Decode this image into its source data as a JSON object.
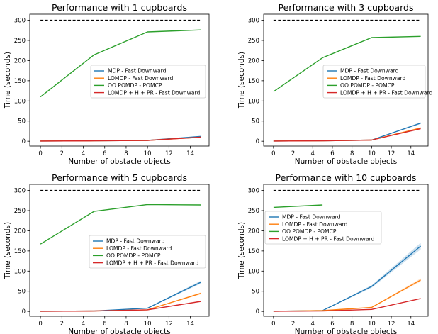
{
  "series_styles": [
    {
      "name": "MDP - Fast Downward",
      "color": "#1f77b4"
    },
    {
      "name": "LOMDP - Fast Downward",
      "color": "#ff7f0e"
    },
    {
      "name": "OO POMDP - POMCP",
      "color": "#2ca02c"
    },
    {
      "name": "LOMDP + H + PR - Fast Downward",
      "color": "#d62728"
    }
  ],
  "timeout_line": {
    "value": 300,
    "color": "#000000",
    "style": "dashed"
  },
  "chart_data": [
    {
      "type": "line",
      "title": "Performance with 1 cupboards",
      "xlabel": "Number of obstacle objects",
      "ylabel": "Time (seconds)",
      "xlim": [
        -1,
        15.75
      ],
      "ylim": [
        -12,
        315
      ],
      "xticks": [
        0,
        2,
        4,
        6,
        8,
        10,
        12,
        14
      ],
      "yticks": [
        0,
        50,
        100,
        150,
        200,
        250,
        300
      ],
      "grid": false,
      "legend": "center-right",
      "x": [
        0,
        5,
        10,
        15
      ],
      "series": [
        {
          "name": "MDP - Fast Downward",
          "values": [
            0.5,
            1,
            2,
            12
          ]
        },
        {
          "name": "LOMDP - Fast Downward",
          "values": [
            0.5,
            1,
            2,
            10
          ]
        },
        {
          "name": "OO POMDP - POMCP",
          "values": [
            110,
            214,
            271,
            276
          ]
        },
        {
          "name": "LOMDP + H + PR - Fast Downward",
          "values": [
            0.5,
            1,
            2,
            10
          ]
        }
      ]
    },
    {
      "type": "line",
      "title": "Performance with 3 cupboards",
      "xlabel": "Number of obstacle objects",
      "ylabel": "Time (seconds)",
      "xlim": [
        -1,
        15.75
      ],
      "ylim": [
        -12,
        315
      ],
      "xticks": [
        0,
        2,
        4,
        6,
        8,
        10,
        12,
        14
      ],
      "yticks": [
        0,
        50,
        100,
        150,
        200,
        250,
        300
      ],
      "grid": false,
      "legend": "center-right",
      "x": [
        0,
        5,
        10,
        15
      ],
      "series": [
        {
          "name": "MDP - Fast Downward",
          "values": [
            0.5,
            1,
            3,
            45
          ]
        },
        {
          "name": "LOMDP - Fast Downward",
          "values": [
            0.5,
            1,
            3,
            33
          ]
        },
        {
          "name": "OO POMDP - POMCP",
          "values": [
            123,
            207,
            257,
            260
          ]
        },
        {
          "name": "LOMDP + H + PR - Fast Downward",
          "values": [
            0.5,
            1,
            3,
            31
          ]
        }
      ]
    },
    {
      "type": "line",
      "title": "Performance with 5 cupboards",
      "xlabel": "Number of obstacle objects",
      "ylabel": "Time (seconds)",
      "xlim": [
        -1,
        15.75
      ],
      "ylim": [
        -12,
        315
      ],
      "xticks": [
        0,
        2,
        4,
        6,
        8,
        10,
        12,
        14
      ],
      "yticks": [
        0,
        50,
        100,
        150,
        200,
        250,
        300
      ],
      "grid": false,
      "legend": "center-right",
      "x": [
        0,
        5,
        10,
        15
      ],
      "series": [
        {
          "name": "MDP - Fast Downward",
          "values": [
            0.5,
            1,
            8,
            73
          ]
        },
        {
          "name": "LOMDP - Fast Downward",
          "values": [
            0.5,
            1,
            4,
            45
          ]
        },
        {
          "name": "OO POMDP - POMCP",
          "values": [
            167,
            248,
            265,
            264
          ]
        },
        {
          "name": "LOMDP + H + PR - Fast Downward",
          "values": [
            0.5,
            1,
            4,
            25
          ]
        }
      ]
    },
    {
      "type": "line",
      "title": "Performance with 10 cupboards",
      "xlabel": "Number of obstacle objects",
      "ylabel": "Time (seconds)",
      "xlim": [
        -1,
        15.75
      ],
      "ylim": [
        -12,
        315
      ],
      "xticks": [
        0,
        2,
        4,
        6,
        8,
        10,
        12,
        14
      ],
      "yticks": [
        0,
        50,
        100,
        150,
        200,
        250,
        300
      ],
      "grid": false,
      "legend": "upper-left",
      "x": [
        0,
        5,
        10,
        15
      ],
      "series": [
        {
          "name": "MDP - Fast Downward",
          "values": [
            0.5,
            2,
            62,
            162
          ]
        },
        {
          "name": "LOMDP - Fast Downward",
          "values": [
            0.5,
            2,
            10,
            78
          ]
        },
        {
          "name": "OO POMDP - POMCP",
          "x": [
            0,
            5
          ],
          "values": [
            258,
            264
          ]
        },
        {
          "name": "LOMDP + H + PR - Fast Downward",
          "values": [
            0.5,
            1,
            5,
            32
          ]
        }
      ]
    }
  ]
}
